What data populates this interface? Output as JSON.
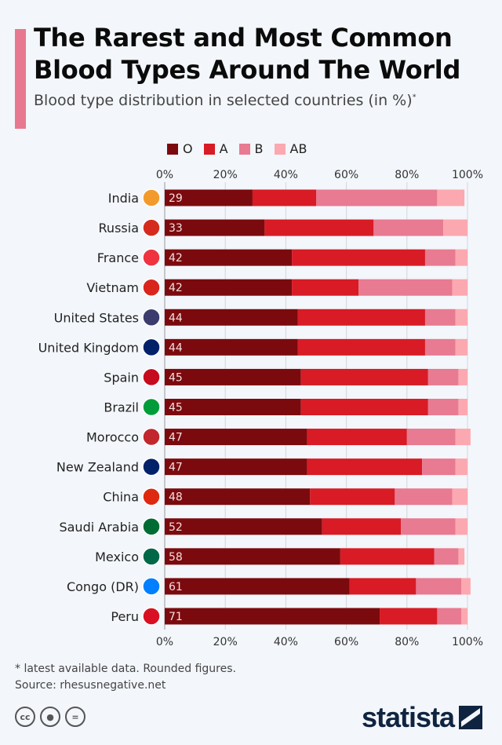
{
  "header": {
    "title_line1": "The Rarest and Most Common",
    "title_line2": "Blood Types Around The World",
    "subtitle": "Blood type distribution in selected countries (in %)",
    "subtitle_mark": "*"
  },
  "footer": {
    "note": "* latest available data. Rounded figures.",
    "source": "Source: rhesusnegative.net",
    "license_icons": [
      "cc-icon",
      "attribution-icon",
      "no-derivatives-icon"
    ],
    "brand": "statista"
  },
  "chart_data": {
    "type": "bar",
    "orientation": "horizontal",
    "stacked": true,
    "title": "The Rarest and Most Common Blood Types Around The World",
    "xlim": [
      0,
      100
    ],
    "x_ticks": [
      "0%",
      "20%",
      "40%",
      "60%",
      "80%",
      "100%"
    ],
    "grid": true,
    "legend_position": "top",
    "categories": [
      "India",
      "Russia",
      "France",
      "Vietnam",
      "United States",
      "United Kingdom",
      "Spain",
      "Brazil",
      "Morocco",
      "New Zealand",
      "China",
      "Saudi Arabia",
      "Mexico",
      "Congo (DR)",
      "Peru"
    ],
    "series": [
      {
        "name": "O",
        "color": "#7b0a0e",
        "values": [
          29,
          33,
          42,
          42,
          44,
          44,
          45,
          45,
          47,
          47,
          48,
          52,
          58,
          61,
          71
        ]
      },
      {
        "name": "A",
        "color": "#d81b25",
        "values": [
          21,
          36,
          44,
          22,
          42,
          42,
          42,
          42,
          33,
          38,
          28,
          26,
          31,
          22,
          19
        ]
      },
      {
        "name": "B",
        "color": "#e87a91",
        "values": [
          40,
          23,
          10,
          31,
          10,
          10,
          10,
          10,
          16,
          11,
          19,
          18,
          8,
          15,
          8
        ]
      },
      {
        "name": "AB",
        "color": "#fca8b0",
        "values": [
          9,
          8,
          4,
          5,
          4,
          4,
          3,
          3,
          5,
          4,
          5,
          4,
          2,
          3,
          2
        ]
      }
    ],
    "data_labels": [
      "29",
      "33",
      "42",
      "42",
      "44",
      "44",
      "45",
      "45",
      "47",
      "47",
      "48",
      "52",
      "58",
      "61",
      "71"
    ],
    "flag_colors": [
      "#f39a2c",
      "#d52b1e",
      "#ef3340",
      "#da251d",
      "#3c3b6e",
      "#012169",
      "#c60b1e",
      "#009c3b",
      "#c1272d",
      "#012169",
      "#de2910",
      "#006c35",
      "#006847",
      "#007fff",
      "#d91023"
    ]
  }
}
